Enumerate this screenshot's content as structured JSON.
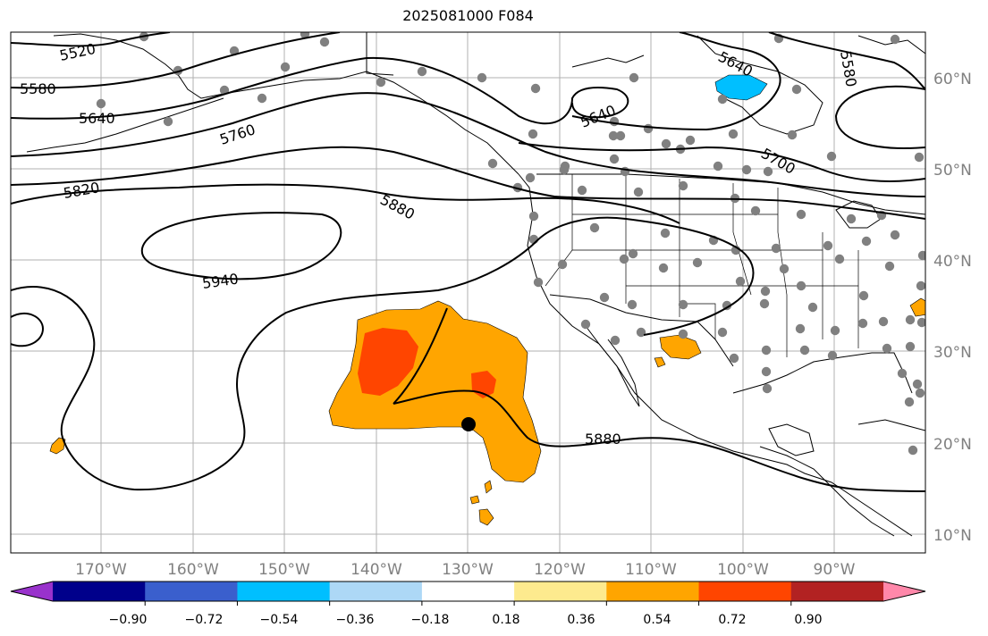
{
  "title": "2025081000 F084",
  "map": {
    "lat_ticks": [
      "60°N",
      "50°N",
      "40°N",
      "30°N",
      "20°N",
      "10°N"
    ],
    "lon_ticks": [
      "170°W",
      "160°W",
      "150°W",
      "140°W",
      "130°W",
      "120°W",
      "110°W",
      "100°W",
      "90°W"
    ],
    "contour_labels": [
      "5520",
      "5580",
      "5640",
      "5760",
      "5820",
      "5880",
      "5940",
      "5640",
      "5640",
      "5700",
      "5580",
      "5880"
    ],
    "colors": {
      "grid": "#b0b0b0",
      "contour": "#000000",
      "positive_mid": "#ffa500",
      "positive_high": "#ff4500",
      "negative_mid": "#00bfff",
      "station_dot": "#808080",
      "center_marker": "#000000"
    }
  },
  "colorbar": {
    "ticks": [
      "−0.90",
      "−0.72",
      "−0.54",
      "−0.36",
      "−0.18",
      "0.18",
      "0.36",
      "0.54",
      "0.72",
      "0.90"
    ],
    "colors": [
      "#9932cc",
      "#00008b",
      "#3a5fcd",
      "#00bfff",
      "#add8f6",
      "#ffffff",
      "#fdea8e",
      "#ffa500",
      "#ff4500",
      "#b22222",
      "#ff88aa"
    ]
  }
}
